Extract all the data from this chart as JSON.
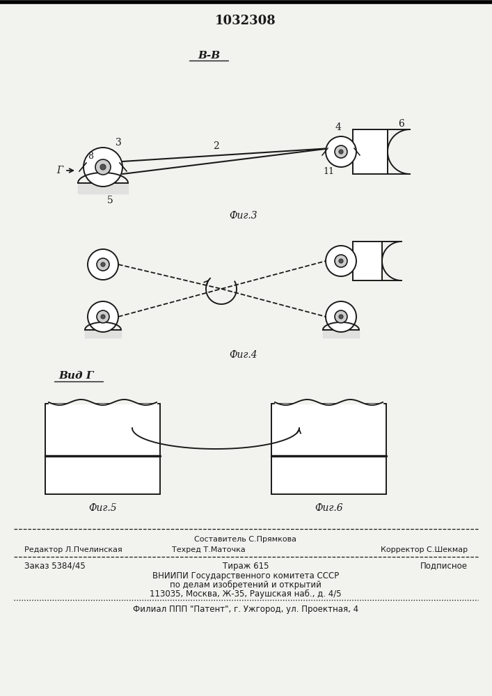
{
  "patent_number": "1032308",
  "bg_color": "#f2f2ee",
  "line_color": "#1a1a1a",
  "fig3_label": "Фиг.3",
  "fig4_label": "Фиг.4",
  "fig5_label": "Фиг.5",
  "fig6_label": "Фиг.6",
  "view_label": "В-В",
  "view_g_label": "Вид Г",
  "label_8": "8",
  "label_3": "3",
  "label_2": "2",
  "label_4": "4",
  "label_6": "6",
  "label_11": "11",
  "label_5": "5",
  "label_g": "Г",
  "footer_sestavitel": "Составитель С.Прямкова",
  "footer_redaktor": "Редактор Л.Пчелинская",
  "footer_tehred": "Техред Т.Маточка",
  "footer_korrektor": "Корректор С.Шекмар",
  "footer_zakaz": "Заказ 5384/45",
  "footer_tirazh": "Тираж 615",
  "footer_podpisnoe": "Подписное",
  "footer_vniip": "ВНИИПИ Государственного комитета СССР",
  "footer_dela": "по делам изобретений и открытий",
  "footer_address": "113035, Москва, Ж-35, Раушская наб., д. 4/5",
  "footer_filial": "Филиал ППП \"Патент\", г. Ужгород, ул. Проектная, 4"
}
